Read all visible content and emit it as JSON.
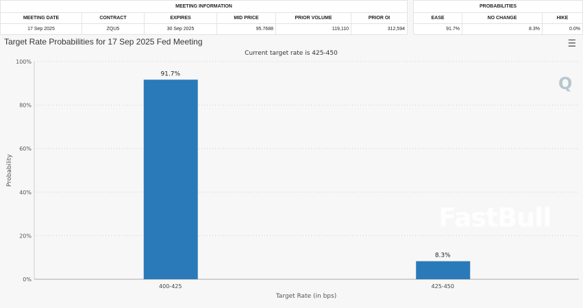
{
  "meeting_info": {
    "heading": "MEETING INFORMATION",
    "columns": [
      "MEETING DATE",
      "CONTRACT",
      "EXPIRES",
      "MID PRICE",
      "PRIOR VOLUME",
      "PRIOR OI"
    ],
    "row": [
      "17 Sep 2025",
      "ZQU5",
      "30 Sep 2025",
      "95.7688",
      "119,110",
      "312,594"
    ]
  },
  "probabilities": {
    "heading": "PROBABILITIES",
    "columns": [
      "EASE",
      "NO CHANGE",
      "HIKE"
    ],
    "row": [
      "91.7%",
      "8.3%",
      "0.0%"
    ]
  },
  "menu_icon": "hamburger-menu-icon",
  "watermark": "FastBull",
  "chart_data": {
    "type": "bar",
    "title": "Target Rate Probabilities for 17 Sep 2025 Fed Meeting",
    "subtitle": "Current target rate is 425-450",
    "xlabel": "Target Rate (in bps)",
    "ylabel": "Probability",
    "categories": [
      "400-425",
      "425-450"
    ],
    "values": [
      91.7,
      8.3
    ],
    "data_labels": [
      "91.7%",
      "8.3%"
    ],
    "ylim": [
      0,
      100
    ],
    "yticks": [
      "0%",
      "20%",
      "40%",
      "60%",
      "80%",
      "100%"
    ],
    "grid": true,
    "bar_color": "#2a7ab9"
  }
}
